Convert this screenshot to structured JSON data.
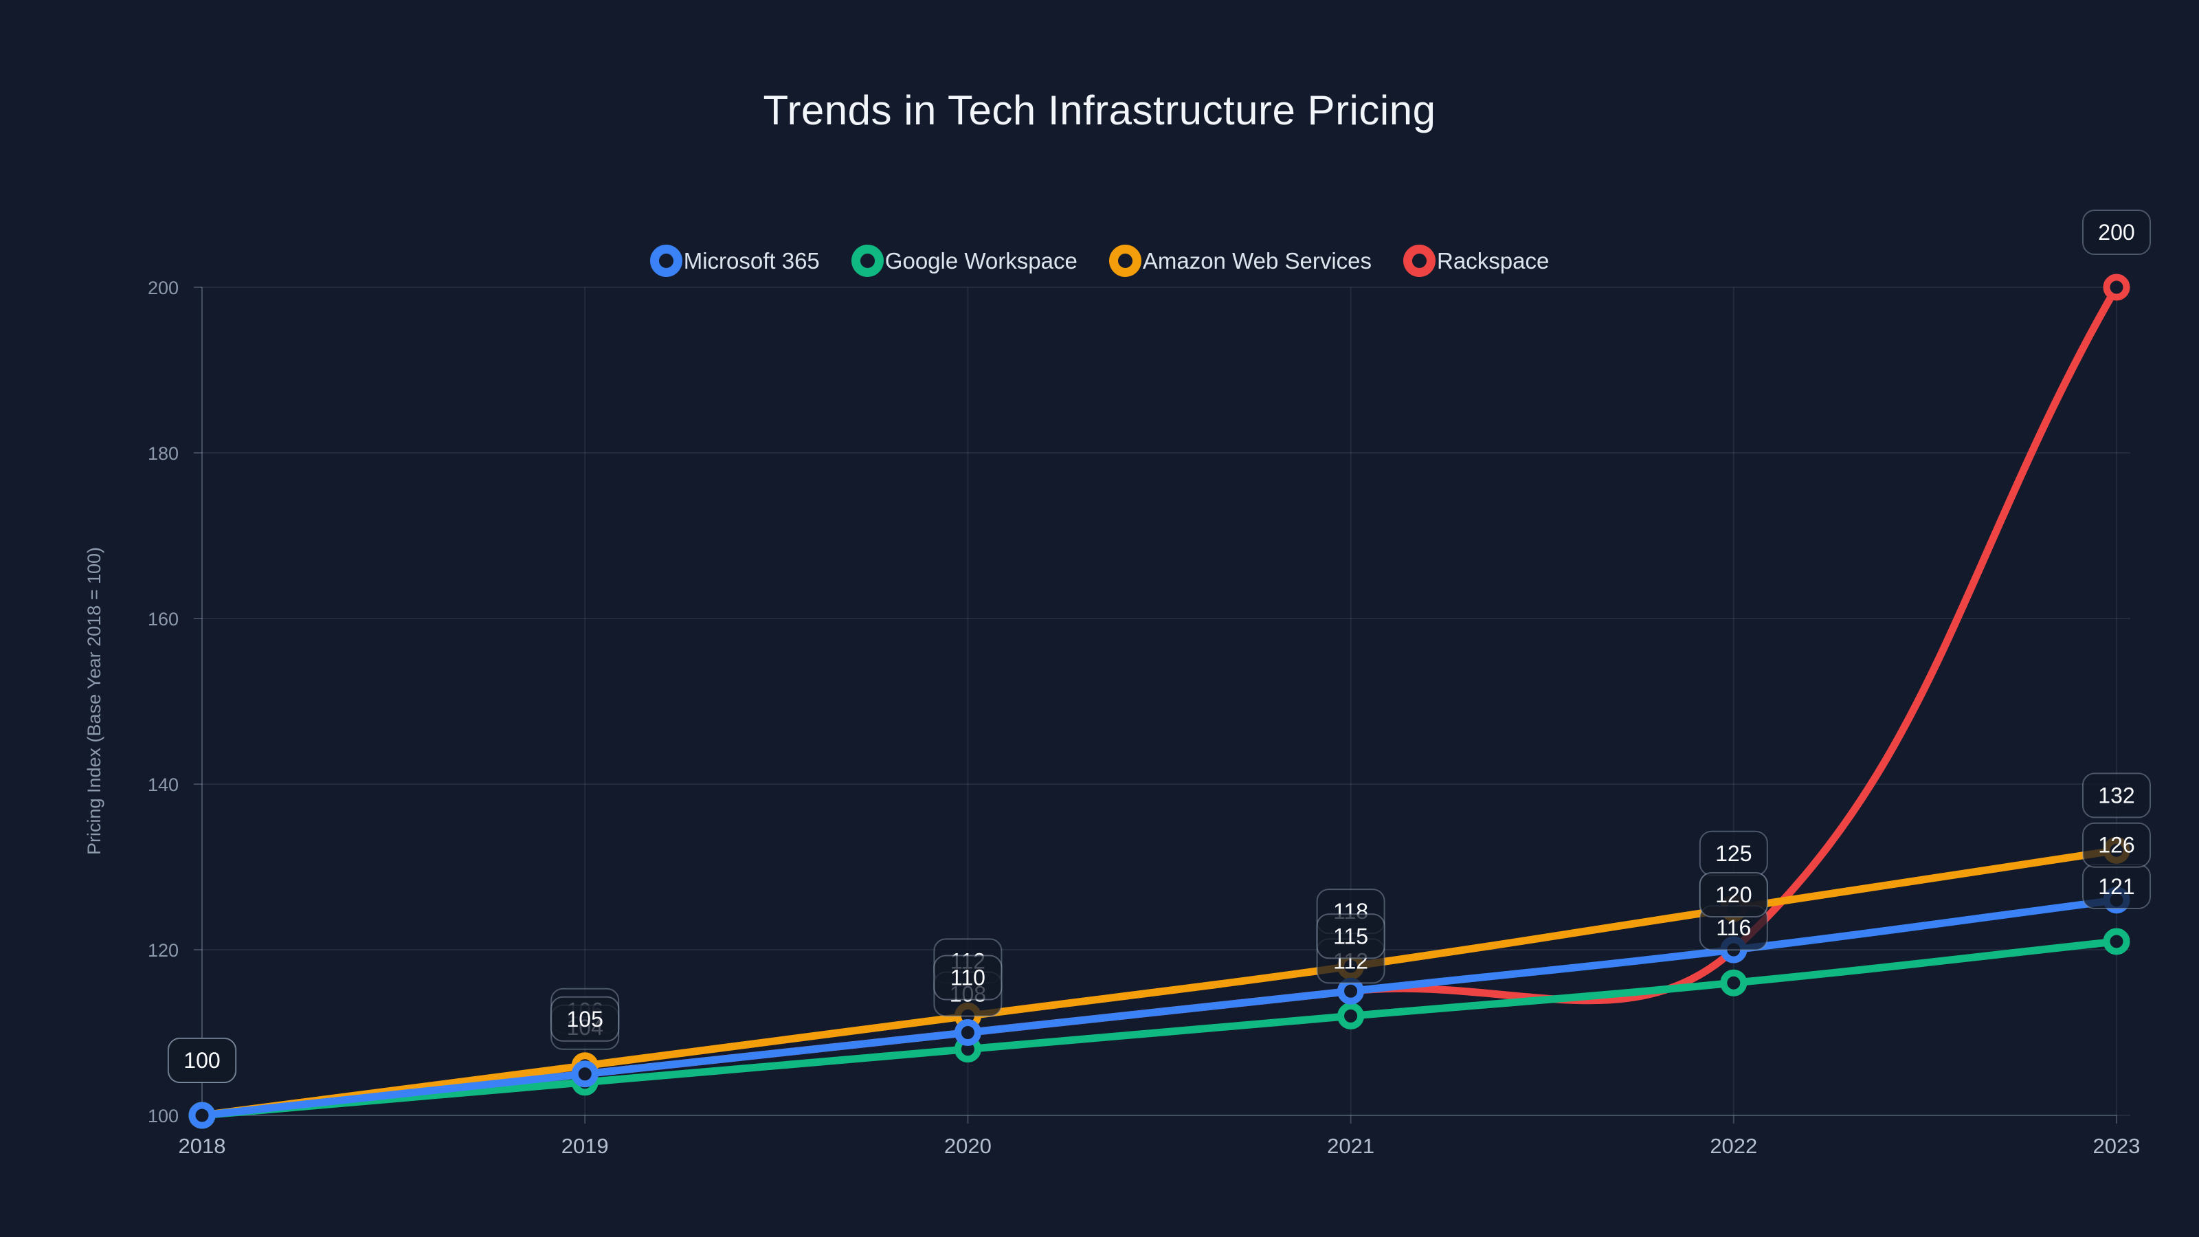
{
  "page": {
    "background": "#121a2b"
  },
  "theme": {
    "grid_color": "rgba(148,163,184,0.13)",
    "axis_border_color": "rgba(148,163,184,0.30)",
    "tick_mark_color": "rgba(148,163,184,0.35)",
    "y_tick_label_color": "#8d9aad",
    "x_tick_label_color": "#b4bfce",
    "axis_title_color": "#8d9aad",
    "label_box_fill": "rgba(17,24,39,0.75)",
    "label_box_border": "rgba(148,163,184,0.45)",
    "label_text_color": "#f8fafc",
    "point_hole_fill": "#121a2b"
  },
  "chart_data": {
    "type": "line",
    "title": "Trends in Tech Infrastructure Pricing",
    "xlabel": "",
    "ylabel": "Pricing Index (Base Year 2018 = 100)",
    "categories": [
      "2018",
      "2019",
      "2020",
      "2021",
      "2022",
      "2023"
    ],
    "y_ticks": [
      100,
      120,
      140,
      160,
      180,
      200
    ],
    "ylim": [
      100,
      200
    ],
    "grid": true,
    "legend_position": "top-center",
    "line_tension": 0.4,
    "series": [
      {
        "name": "Microsoft 365",
        "color": "#3b82f6",
        "values": [
          100,
          105,
          110,
          115,
          120,
          126
        ]
      },
      {
        "name": "Google Workspace",
        "color": "#10b981",
        "values": [
          100,
          104,
          108,
          112,
          116,
          121
        ]
      },
      {
        "name": "Amazon Web Services",
        "color": "#f59e0b",
        "values": [
          100,
          106,
          112,
          118,
          125,
          132
        ]
      },
      {
        "name": "Rackspace",
        "color": "#ef4444",
        "values": [
          100,
          105,
          110,
          115,
          120,
          200
        ]
      }
    ]
  }
}
